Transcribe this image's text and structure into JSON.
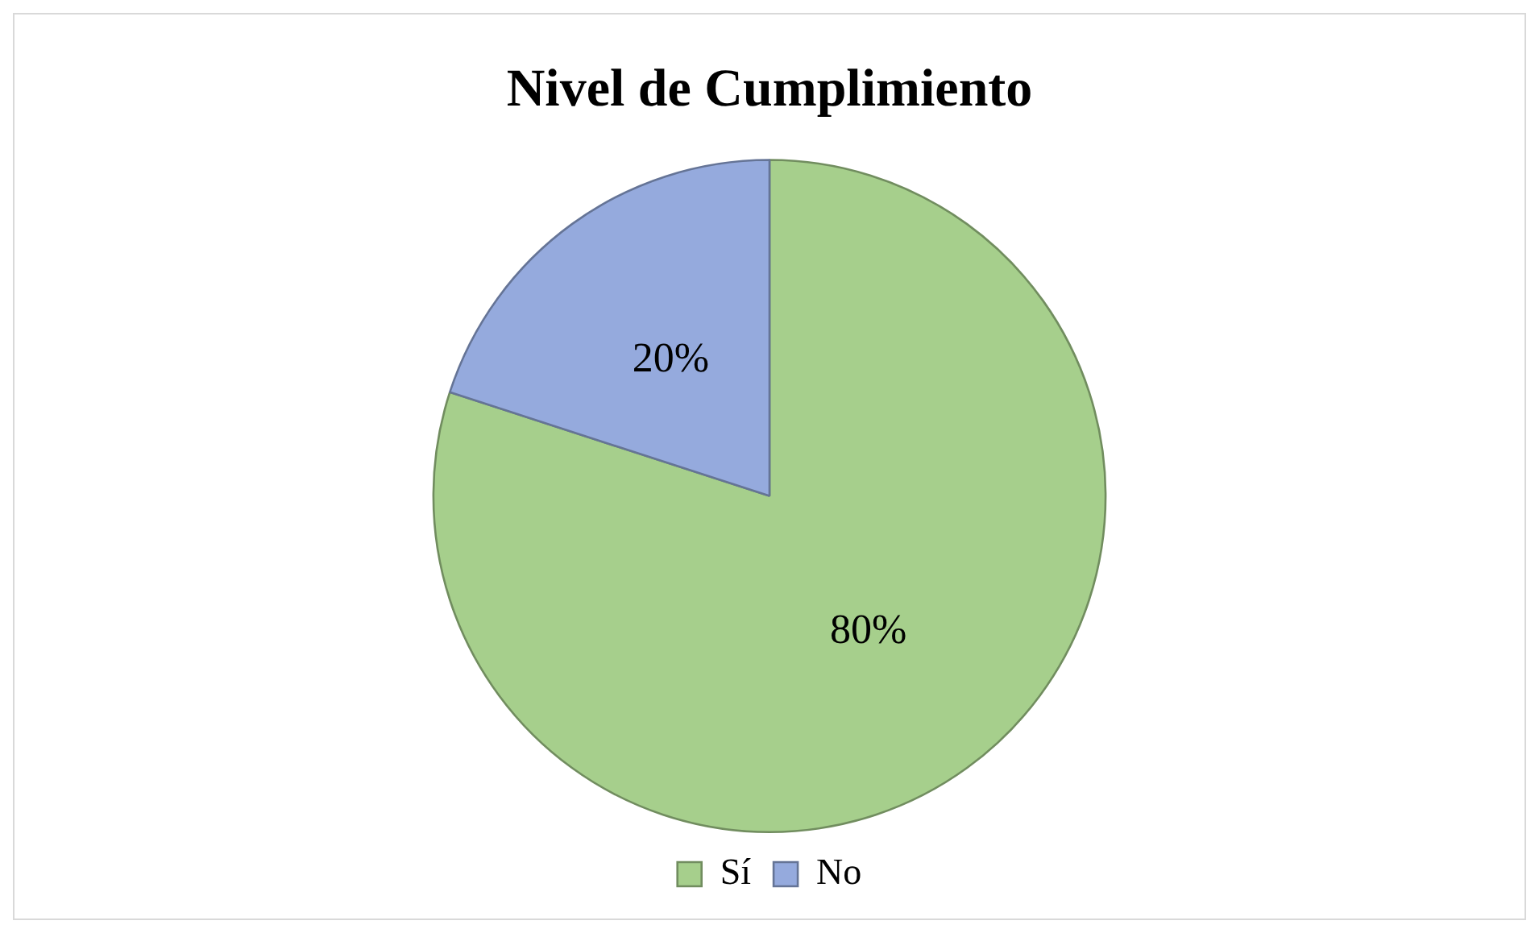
{
  "chart_data": {
    "type": "pie",
    "title": "Nivel de Cumplimiento",
    "categories": [
      "Sí",
      "No"
    ],
    "values": [
      80,
      20
    ],
    "colors": [
      "#a6cf8c",
      "#95aadd"
    ],
    "value_labels": [
      "80%",
      "20%"
    ],
    "legend": "bottom"
  }
}
